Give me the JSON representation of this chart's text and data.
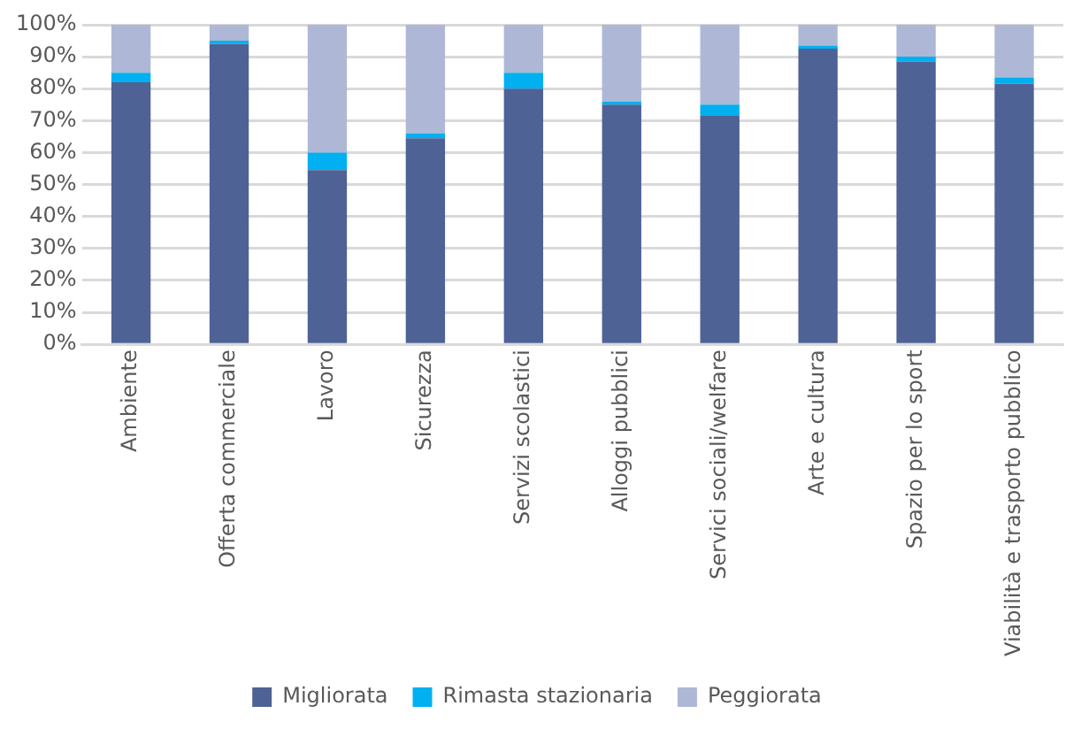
{
  "chart_data": {
    "type": "bar",
    "stacked": true,
    "categories": [
      "Ambiente",
      "Offerta commerciale",
      "Lavoro",
      "Sicurezza",
      "Servizi scolastici",
      "Alloggi pubblici",
      "Servici sociali/welfare",
      "Arte e cultura",
      "Spazio per lo sport",
      "Viabilità e trasporto pubblico"
    ],
    "series": [
      {
        "name": "Migliorata",
        "color": "#4f6296",
        "values": [
          82,
          94,
          54.5,
          64.5,
          80,
          75,
          71.5,
          92.5,
          88.5,
          81.5
        ]
      },
      {
        "name": "Rimasta stazionaria",
        "color": "#00b0f0",
        "values": [
          3,
          1,
          5.5,
          1.5,
          5,
          1,
          3.5,
          1,
          1.5,
          2
        ]
      },
      {
        "name": "Peggiorata",
        "color": "#aeb8d6",
        "values": [
          15,
          5,
          40,
          34,
          15,
          24,
          25,
          6.5,
          10,
          16.5
        ]
      }
    ],
    "ylim": [
      0,
      100
    ],
    "yticks": [
      {
        "value": 0,
        "label": "0%"
      },
      {
        "value": 10,
        "label": "10%"
      },
      {
        "value": 20,
        "label": "20%"
      },
      {
        "value": 30,
        "label": "30%"
      },
      {
        "value": 40,
        "label": "40%"
      },
      {
        "value": 50,
        "label": "50%"
      },
      {
        "value": 60,
        "label": "60%"
      },
      {
        "value": 70,
        "label": "70%"
      },
      {
        "value": 80,
        "label": "80%"
      },
      {
        "value": 90,
        "label": "90%"
      },
      {
        "value": 100,
        "label": "100%"
      }
    ],
    "grid": "y",
    "legend": "bottom"
  }
}
